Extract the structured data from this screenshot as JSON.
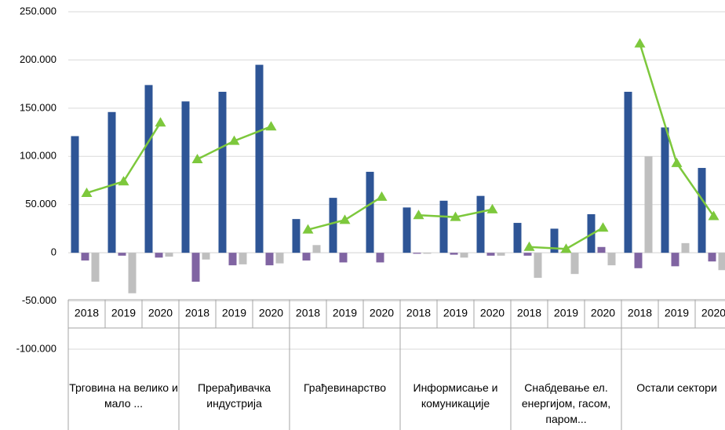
{
  "chart_data": {
    "type": "bar",
    "groups": [
      {
        "name": "Трговина на велико и мало ...",
        "categories": [
          "2018",
          "2019",
          "2020"
        ]
      },
      {
        "name": "Прерађивачка индустрија",
        "categories": [
          "2018",
          "2019",
          "2020"
        ]
      },
      {
        "name": "Грађевинарство",
        "categories": [
          "2018",
          "2019",
          "2020"
        ]
      },
      {
        "name": "Информисање и комуникације",
        "categories": [
          "2018",
          "2019",
          "2020"
        ]
      },
      {
        "name": "Снабдевање ел. енергијом, гасом, паром...",
        "categories": [
          "2018",
          "2019",
          "2020"
        ]
      },
      {
        "name": "Остали сектори",
        "categories": [
          "2018",
          "2019",
          "2020"
        ]
      }
    ],
    "series": [
      {
        "type": "bar",
        "color": "#2e5596",
        "values": [
          121000,
          146000,
          174000,
          157000,
          167000,
          195000,
          35000,
          57000,
          84000,
          47000,
          54000,
          59000,
          31000,
          25000,
          40000,
          167000,
          130000,
          88000
        ]
      },
      {
        "type": "bar",
        "color": "#8064a2",
        "values": [
          -8000,
          -3000,
          -5000,
          -30000,
          -13000,
          -13000,
          -8000,
          -10000,
          -10000,
          -1000,
          -2000,
          -3000,
          -3000,
          1000,
          6000,
          -16000,
          -14000,
          -9000
        ]
      },
      {
        "type": "bar",
        "color": "#bfbfbf",
        "values": [
          -30000,
          -42000,
          -4000,
          -7000,
          -12000,
          -11000,
          8000,
          0,
          0,
          -1000,
          -5000,
          -3000,
          -26000,
          -22000,
          -13000,
          100000,
          10000,
          -18000
        ]
      },
      {
        "type": "line",
        "color": "#7dc83c",
        "values": [
          62000,
          74000,
          135000,
          97000,
          116000,
          131000,
          24000,
          34000,
          58000,
          39000,
          37000,
          45000,
          6000,
          4000,
          26000,
          217000,
          93000,
          38000
        ]
      }
    ],
    "ylim": [
      -100000,
      250000
    ],
    "yticks": [
      {
        "value": -100000,
        "label": "-100.000"
      },
      {
        "value": -50000,
        "label": "-50.000"
      },
      0,
      {
        "value": 50000,
        "label": "50.000"
      },
      {
        "value": 100000,
        "label": "100.000"
      },
      {
        "value": 150000,
        "label": "150.000"
      },
      {
        "value": 200000,
        "label": "200.000"
      },
      {
        "value": 250000,
        "label": "250.000"
      }
    ],
    "grid": true
  }
}
